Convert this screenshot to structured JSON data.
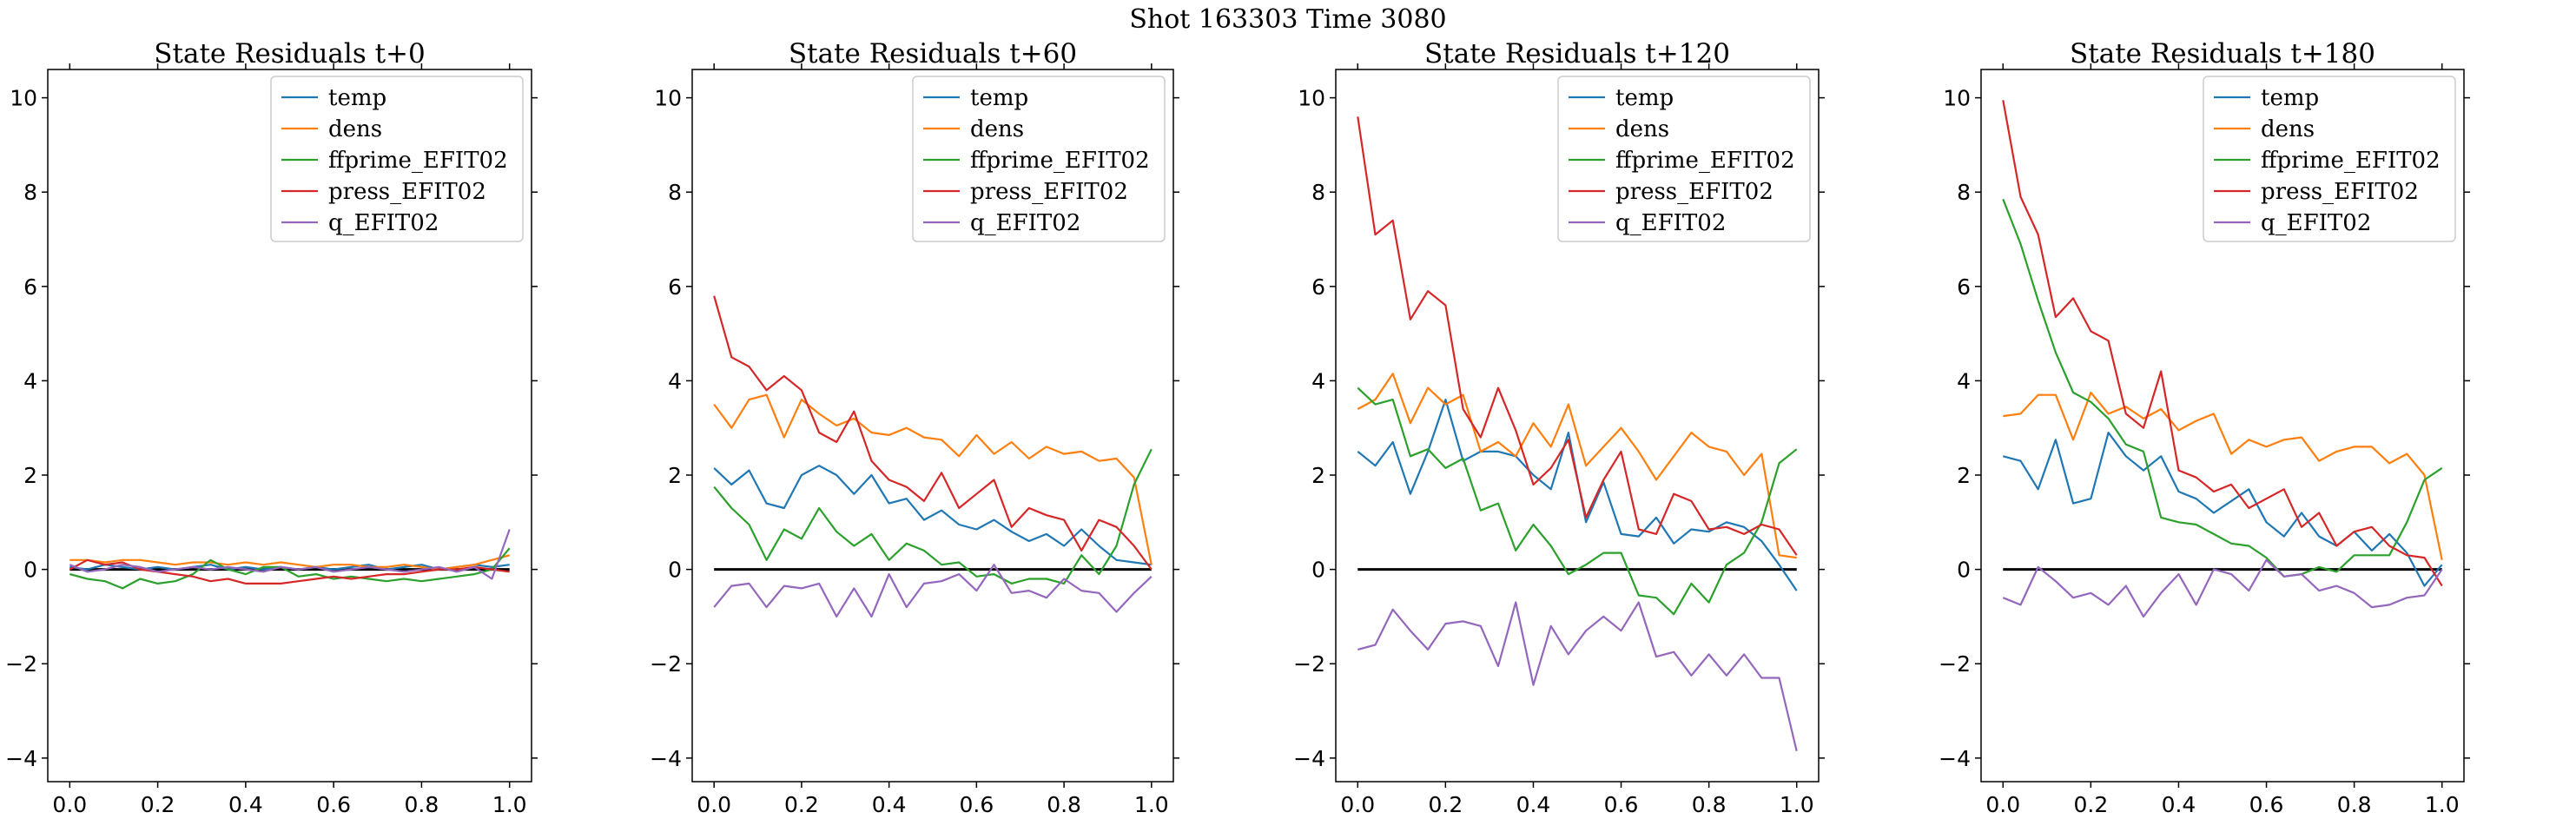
{
  "figure_title": "Shot 163303   Time 3080",
  "colors": {
    "temp": "#1f77b4",
    "dens": "#ff7f0e",
    "ffprime_EFIT02": "#2ca02c",
    "press_EFIT02": "#d62728",
    "q_EFIT02": "#9467bd",
    "zero_line": "#000000"
  },
  "chart_data": [
    {
      "type": "line",
      "title": "State Residuals t+0",
      "xlabel": "",
      "ylabel": "",
      "xlim": [
        -0.05,
        1.05
      ],
      "ylim": [
        -4.5,
        10.6
      ],
      "xticks": [
        "0.0",
        "0.2",
        "0.4",
        "0.6",
        "0.8",
        "1.0"
      ],
      "yticks": [
        "−4",
        "−2",
        "0",
        "2",
        "4",
        "6",
        "8",
        "10"
      ],
      "legend_position": "top-right",
      "grid": false,
      "x": [
        0.0,
        0.04,
        0.08,
        0.12,
        0.16,
        0.2,
        0.24,
        0.28,
        0.32,
        0.36,
        0.4,
        0.44,
        0.48,
        0.52,
        0.56,
        0.6,
        0.64,
        0.68,
        0.72,
        0.76,
        0.8,
        0.84,
        0.88,
        0.92,
        0.96,
        1.0
      ],
      "series": [
        {
          "name": "temp",
          "values": [
            0.05,
            0.0,
            0.1,
            0.05,
            0.0,
            0.05,
            0.0,
            0.05,
            0.1,
            0.0,
            0.05,
            0.0,
            0.05,
            0.0,
            0.05,
            0.0,
            0.05,
            0.1,
            0.0,
            0.05,
            0.1,
            0.0,
            0.05,
            0.1,
            0.05,
            0.1
          ]
        },
        {
          "name": "dens",
          "values": [
            0.2,
            0.2,
            0.15,
            0.2,
            0.2,
            0.15,
            0.1,
            0.15,
            0.15,
            0.1,
            0.15,
            0.1,
            0.15,
            0.1,
            0.05,
            0.1,
            0.1,
            0.05,
            0.05,
            0.1,
            0.05,
            0.0,
            0.05,
            0.1,
            0.2,
            0.3
          ]
        },
        {
          "name": "ffprime_EFIT02",
          "values": [
            -0.1,
            -0.2,
            -0.25,
            -0.4,
            -0.2,
            -0.3,
            -0.25,
            -0.1,
            0.2,
            0.0,
            -0.1,
            0.05,
            0.05,
            -0.15,
            -0.1,
            -0.2,
            -0.15,
            -0.2,
            -0.25,
            -0.2,
            -0.25,
            -0.2,
            -0.15,
            -0.1,
            0.0,
            0.45
          ]
        },
        {
          "name": "press_EFIT02",
          "values": [
            0.0,
            0.2,
            0.1,
            0.15,
            0.0,
            -0.05,
            -0.1,
            -0.15,
            -0.25,
            -0.2,
            -0.3,
            -0.3,
            -0.3,
            -0.25,
            -0.2,
            -0.15,
            -0.2,
            -0.15,
            -0.1,
            -0.1,
            -0.05,
            0.0,
            0.0,
            0.05,
            0.0,
            -0.05
          ]
        },
        {
          "name": "q_EFIT02",
          "values": [
            0.1,
            -0.05,
            0.0,
            0.1,
            0.05,
            -0.05,
            0.0,
            0.05,
            0.0,
            0.05,
            0.0,
            -0.05,
            0.05,
            0.0,
            0.05,
            -0.05,
            0.0,
            0.05,
            0.0,
            -0.05,
            0.0,
            0.05,
            -0.05,
            0.05,
            -0.2,
            0.85
          ]
        }
      ]
    },
    {
      "type": "line",
      "title": "State Residuals t+60",
      "xlabel": "",
      "ylabel": "",
      "xlim": [
        -0.05,
        1.05
      ],
      "ylim": [
        -4.5,
        10.6
      ],
      "xticks": [
        "0.0",
        "0.2",
        "0.4",
        "0.6",
        "0.8",
        "1.0"
      ],
      "yticks": [
        "−4",
        "−2",
        "0",
        "2",
        "4",
        "6",
        "8",
        "10"
      ],
      "legend_position": "top-right",
      "grid": false,
      "x": [
        0.0,
        0.04,
        0.08,
        0.12,
        0.16,
        0.2,
        0.24,
        0.28,
        0.32,
        0.36,
        0.4,
        0.44,
        0.48,
        0.52,
        0.56,
        0.6,
        0.64,
        0.68,
        0.72,
        0.76,
        0.8,
        0.84,
        0.88,
        0.92,
        0.96,
        1.0
      ],
      "series": [
        {
          "name": "temp",
          "values": [
            2.15,
            1.8,
            2.1,
            1.4,
            1.3,
            2.0,
            2.2,
            2.0,
            1.6,
            2.0,
            1.4,
            1.5,
            1.05,
            1.25,
            0.95,
            0.85,
            1.05,
            0.8,
            0.6,
            0.75,
            0.5,
            0.85,
            0.5,
            0.2,
            0.15,
            0.1
          ]
        },
        {
          "name": "dens",
          "values": [
            3.5,
            3.0,
            3.6,
            3.7,
            2.8,
            3.6,
            3.3,
            3.05,
            3.2,
            2.9,
            2.85,
            3.0,
            2.8,
            2.75,
            2.4,
            2.85,
            2.45,
            2.7,
            2.35,
            2.6,
            2.45,
            2.5,
            2.3,
            2.35,
            1.95,
            0.1
          ]
        },
        {
          "name": "ffprime_EFIT02",
          "values": [
            1.75,
            1.3,
            0.95,
            0.2,
            0.85,
            0.65,
            1.3,
            0.8,
            0.5,
            0.75,
            0.2,
            0.55,
            0.4,
            0.1,
            0.15,
            -0.15,
            -0.1,
            -0.3,
            -0.2,
            -0.2,
            -0.3,
            0.3,
            -0.1,
            0.5,
            1.8,
            2.55
          ]
        },
        {
          "name": "press_EFIT02",
          "values": [
            5.8,
            4.5,
            4.3,
            3.8,
            4.1,
            3.8,
            2.9,
            2.7,
            3.35,
            2.3,
            1.9,
            1.75,
            1.45,
            2.05,
            1.3,
            1.6,
            1.9,
            0.9,
            1.3,
            1.15,
            1.05,
            0.4,
            1.05,
            0.9,
            0.5,
            0.0
          ]
        },
        {
          "name": "q_EFIT02",
          "values": [
            -0.8,
            -0.35,
            -0.3,
            -0.8,
            -0.35,
            -0.4,
            -0.3,
            -1.0,
            -0.4,
            -1.0,
            -0.1,
            -0.8,
            -0.3,
            -0.25,
            -0.1,
            -0.45,
            0.1,
            -0.5,
            -0.45,
            -0.6,
            -0.2,
            -0.45,
            -0.5,
            -0.9,
            -0.5,
            -0.15
          ]
        }
      ]
    },
    {
      "type": "line",
      "title": "State Residuals t+120",
      "xlabel": "",
      "ylabel": "",
      "xlim": [
        -0.05,
        1.05
      ],
      "ylim": [
        -4.5,
        10.6
      ],
      "xticks": [
        "0.0",
        "0.2",
        "0.4",
        "0.6",
        "0.8",
        "1.0"
      ],
      "yticks": [
        "−4",
        "−2",
        "0",
        "2",
        "4",
        "6",
        "8",
        "10"
      ],
      "legend_position": "top-right",
      "grid": false,
      "x": [
        0.0,
        0.04,
        0.08,
        0.12,
        0.16,
        0.2,
        0.24,
        0.28,
        0.32,
        0.36,
        0.4,
        0.44,
        0.48,
        0.52,
        0.56,
        0.6,
        0.64,
        0.68,
        0.72,
        0.76,
        0.8,
        0.84,
        0.88,
        0.92,
        0.96,
        1.0
      ],
      "series": [
        {
          "name": "temp",
          "values": [
            2.5,
            2.2,
            2.7,
            1.6,
            2.5,
            3.6,
            2.3,
            2.5,
            2.5,
            2.4,
            2.0,
            1.7,
            2.9,
            1.0,
            1.85,
            0.75,
            0.7,
            1.1,
            0.55,
            0.85,
            0.8,
            1.0,
            0.9,
            0.6,
            0.1,
            -0.45
          ]
        },
        {
          "name": "dens",
          "values": [
            3.4,
            3.6,
            4.15,
            3.1,
            3.85,
            3.5,
            3.7,
            2.5,
            2.7,
            2.4,
            3.1,
            2.6,
            3.5,
            2.2,
            2.6,
            3.0,
            2.5,
            1.9,
            2.4,
            2.9,
            2.6,
            2.5,
            2.0,
            2.45,
            0.3,
            0.25
          ]
        },
        {
          "name": "ffprime_EFIT02",
          "values": [
            3.85,
            3.5,
            3.6,
            2.4,
            2.55,
            2.15,
            2.35,
            1.25,
            1.4,
            0.4,
            0.95,
            0.5,
            -0.1,
            0.1,
            0.35,
            0.35,
            -0.55,
            -0.6,
            -0.95,
            -0.3,
            -0.7,
            0.1,
            0.35,
            1.0,
            2.25,
            2.55
          ]
        },
        {
          "name": "press_EFIT02",
          "values": [
            9.6,
            7.1,
            7.4,
            5.3,
            5.9,
            5.6,
            3.4,
            2.8,
            3.85,
            2.95,
            1.8,
            2.15,
            2.75,
            1.1,
            1.9,
            2.5,
            0.85,
            0.75,
            1.6,
            1.45,
            0.85,
            0.9,
            0.75,
            0.95,
            0.85,
            0.3
          ]
        },
        {
          "name": "q_EFIT02",
          "values": [
            -1.7,
            -1.6,
            -0.85,
            -1.3,
            -1.7,
            -1.15,
            -1.1,
            -1.2,
            -2.05,
            -0.7,
            -2.45,
            -1.2,
            -1.8,
            -1.3,
            -1.0,
            -1.3,
            -0.7,
            -1.85,
            -1.75,
            -2.25,
            -1.8,
            -2.25,
            -1.8,
            -2.3,
            -2.3,
            -3.85
          ]
        }
      ]
    },
    {
      "type": "line",
      "title": "State Residuals t+180",
      "xlabel": "",
      "ylabel": "",
      "xlim": [
        -0.05,
        1.05
      ],
      "ylim": [
        -4.5,
        10.6
      ],
      "xticks": [
        "0.0",
        "0.2",
        "0.4",
        "0.6",
        "0.8",
        "1.0"
      ],
      "yticks": [
        "−4",
        "−2",
        "0",
        "2",
        "4",
        "6",
        "8",
        "10"
      ],
      "legend_position": "top-right",
      "grid": false,
      "x": [
        0.0,
        0.04,
        0.08,
        0.12,
        0.16,
        0.2,
        0.24,
        0.28,
        0.32,
        0.36,
        0.4,
        0.44,
        0.48,
        0.52,
        0.56,
        0.6,
        0.64,
        0.68,
        0.72,
        0.76,
        0.8,
        0.84,
        0.88,
        0.92,
        0.96,
        1.0
      ],
      "series": [
        {
          "name": "temp",
          "values": [
            2.4,
            2.3,
            1.7,
            2.75,
            1.4,
            1.5,
            2.9,
            2.4,
            2.1,
            2.4,
            1.65,
            1.5,
            1.2,
            1.45,
            1.7,
            1.0,
            0.7,
            1.2,
            0.7,
            0.5,
            0.8,
            0.4,
            0.75,
            0.35,
            -0.35,
            0.1
          ]
        },
        {
          "name": "dens",
          "values": [
            3.25,
            3.3,
            3.7,
            3.7,
            2.75,
            3.75,
            3.3,
            3.45,
            3.2,
            3.4,
            2.95,
            3.15,
            3.3,
            2.45,
            2.75,
            2.6,
            2.75,
            2.8,
            2.3,
            2.5,
            2.6,
            2.6,
            2.25,
            2.45,
            2.0,
            0.2
          ]
        },
        {
          "name": "ffprime_EFIT02",
          "values": [
            7.85,
            6.9,
            5.7,
            4.6,
            3.75,
            3.55,
            3.2,
            2.65,
            2.5,
            1.1,
            1.0,
            0.95,
            0.75,
            0.55,
            0.5,
            0.25,
            -0.15,
            -0.1,
            0.05,
            -0.05,
            0.3,
            0.3,
            0.3,
            1.0,
            1.9,
            2.15
          ]
        },
        {
          "name": "press_EFIT02",
          "values": [
            9.95,
            7.9,
            7.1,
            5.35,
            5.75,
            5.05,
            4.85,
            3.3,
            3.0,
            4.2,
            2.1,
            1.95,
            1.65,
            1.8,
            1.3,
            1.5,
            1.7,
            0.9,
            1.2,
            0.5,
            0.8,
            0.9,
            0.5,
            0.3,
            0.25,
            -0.35
          ]
        },
        {
          "name": "q_EFIT02",
          "values": [
            -0.6,
            -0.75,
            0.05,
            -0.25,
            -0.6,
            -0.5,
            -0.75,
            -0.35,
            -1.0,
            -0.5,
            -0.1,
            -0.75,
            0.0,
            -0.1,
            -0.45,
            0.2,
            -0.15,
            -0.1,
            -0.45,
            -0.35,
            -0.5,
            -0.8,
            -0.75,
            -0.6,
            -0.55,
            0.0
          ]
        }
      ]
    }
  ]
}
